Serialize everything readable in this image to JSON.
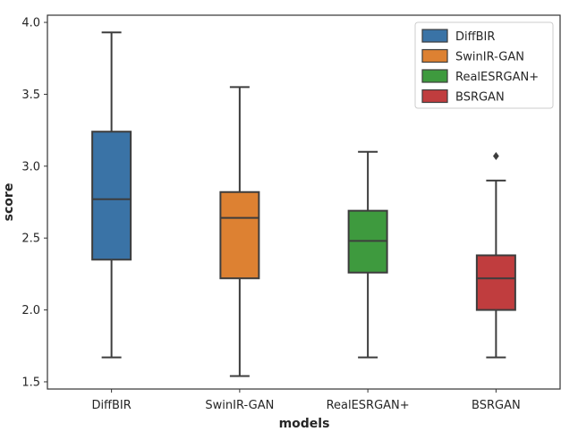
{
  "chart_data": {
    "type": "boxplot",
    "title": "",
    "xlabel": "models",
    "ylabel": "score",
    "ylim": [
      1.45,
      4.05
    ],
    "yticks": [
      "1.5",
      "2.0",
      "2.5",
      "3.0",
      "3.5",
      "4.0"
    ],
    "ytick_values": [
      1.5,
      2.0,
      2.5,
      3.0,
      3.5,
      4.0
    ],
    "grid": false,
    "legend_position": "top-right",
    "categories": [
      "DiffBIR",
      "SwinIR-GAN",
      "RealESRGAN+",
      "BSRGAN"
    ],
    "series": [
      {
        "name": "DiffBIR",
        "color": "#3a73a6",
        "whisker_low": 1.67,
        "q1": 2.35,
        "median": 2.77,
        "q3": 3.24,
        "whisker_high": 3.93,
        "outliers": []
      },
      {
        "name": "SwinIR-GAN",
        "color": "#dd8132",
        "whisker_low": 1.54,
        "q1": 2.22,
        "median": 2.64,
        "q3": 2.82,
        "whisker_high": 3.55,
        "outliers": []
      },
      {
        "name": "RealESRGAN+",
        "color": "#3e9a3e",
        "whisker_low": 1.67,
        "q1": 2.26,
        "median": 2.48,
        "q3": 2.69,
        "whisker_high": 3.1,
        "outliers": []
      },
      {
        "name": "BSRGAN",
        "color": "#c03d3e",
        "whisker_low": 1.67,
        "q1": 2.0,
        "median": 2.22,
        "q3": 2.38,
        "whisker_high": 2.9,
        "outliers": [
          3.07
        ]
      }
    ]
  }
}
